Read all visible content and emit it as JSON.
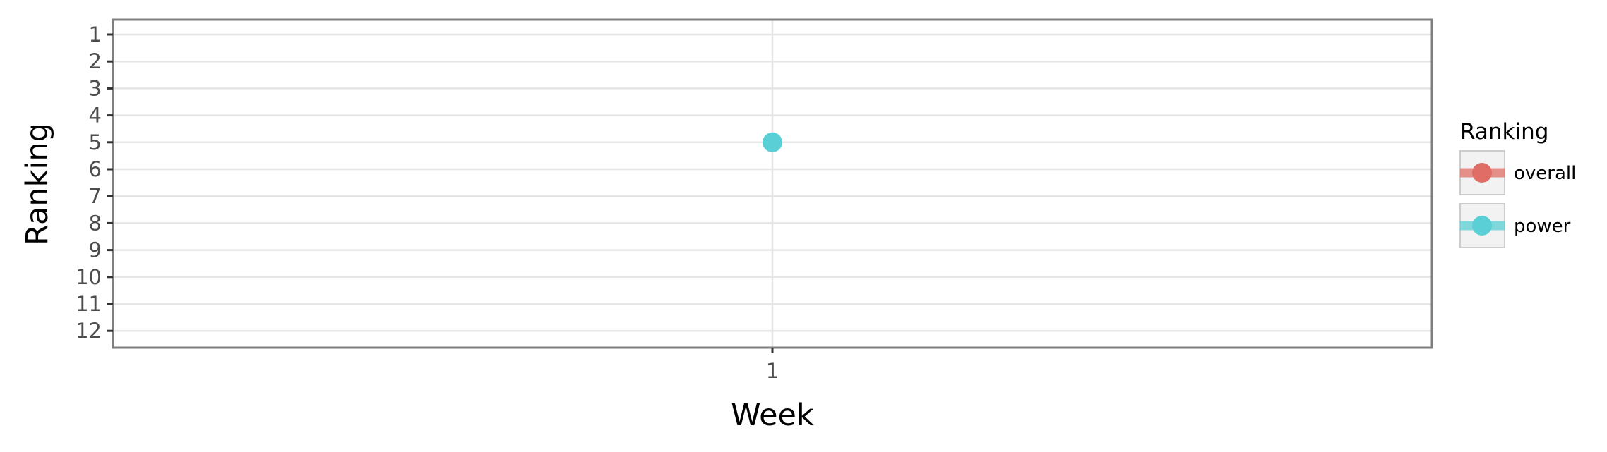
{
  "chart_data": {
    "type": "line",
    "xlabel": "Week",
    "ylabel": "Ranking",
    "x_ticks": [
      "1"
    ],
    "y_ticks": [
      "1",
      "2",
      "3",
      "4",
      "5",
      "6",
      "7",
      "8",
      "9",
      "10",
      "11",
      "12"
    ],
    "ylim": [
      1,
      12
    ],
    "y_reversed": true,
    "grid": true,
    "legend": {
      "title": "Ranking",
      "placement": "right",
      "entries": [
        {
          "label": "overall",
          "color": "#E06D66"
        },
        {
          "label": "power",
          "color": "#5ACFD6"
        }
      ]
    },
    "series": [
      {
        "name": "overall",
        "color": "#E06D66",
        "points": []
      },
      {
        "name": "power",
        "color": "#5ACFD6",
        "points": [
          {
            "x": 1,
            "y": 5
          }
        ]
      }
    ]
  }
}
